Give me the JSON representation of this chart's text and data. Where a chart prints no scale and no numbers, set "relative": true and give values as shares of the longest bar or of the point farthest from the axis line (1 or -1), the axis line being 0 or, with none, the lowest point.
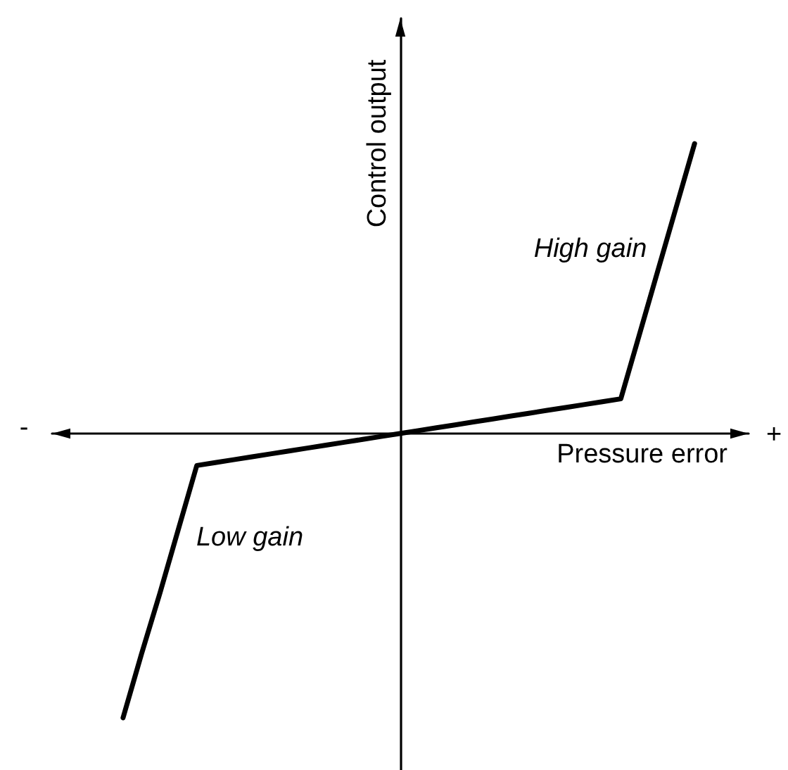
{
  "chart_data": {
    "type": "line",
    "relative": true,
    "xlabel": "Pressure error",
    "ylabel": "Control output",
    "categories": [
      null,
      null,
      null,
      null,
      null,
      null,
      null,
      null,
      null,
      null,
      null,
      null,
      null,
      null,
      null,
      null,
      null,
      null,
      null,
      null,
      null,
      null,
      null,
      null,
      null,
      null,
      null,
      null,
      null,
      null,
      null,
      null
    ],
    "series": [
      {
        "color": "#000000",
        "values": [
          -0.98,
          -0.76,
          -0.55,
          -0.33,
          -0.11,
          -0.1,
          -0.09,
          -0.08,
          -0.07,
          -0.06,
          -0.05,
          -0.04,
          -0.03,
          -0.02,
          -0.01,
          0,
          0.01,
          0.02,
          0.03,
          0.04,
          0.05,
          0.06,
          0.07,
          0.08,
          0.09,
          0.1,
          0.11,
          0.12,
          0.34,
          0.56,
          0.78,
          1
        ]
      }
    ],
    "annotations": [
      "-",
      "+",
      "High gain",
      "Low gain"
    ],
    "marker": "none",
    "line_style": "solid"
  }
}
